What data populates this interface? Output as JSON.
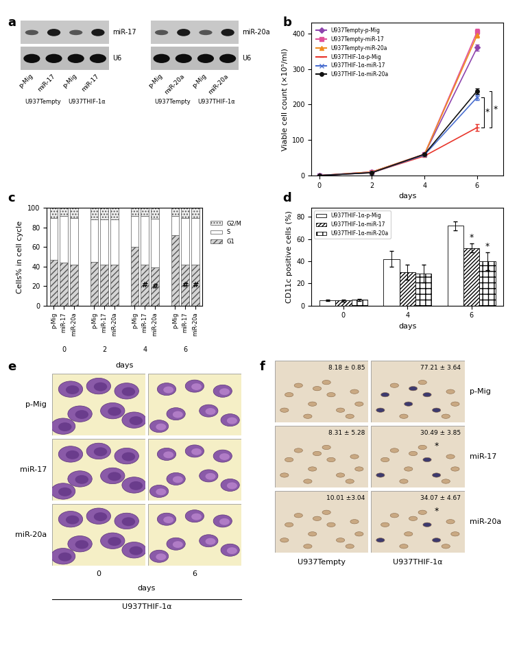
{
  "panel_a": {
    "label": "a",
    "blots": [
      {
        "probe": "miR-17",
        "control": "U6",
        "lanes": [
          "p-Mig",
          "miR-17",
          "p-Mig",
          "miR-17"
        ],
        "groups": [
          "U937Tempty",
          "U937THIF-1α"
        ]
      },
      {
        "probe": "miR-20a",
        "control": "U6",
        "lanes": [
          "p-Mig",
          "miR-20a",
          "p-Mig",
          "miR-20a"
        ],
        "groups": [
          "U937Tempty",
          "U937THIF-1α"
        ]
      }
    ]
  },
  "chart_data": [
    {
      "panel": "b",
      "type": "line",
      "x": [
        0,
        2,
        4,
        6
      ],
      "xlim": [
        -0.3,
        7
      ],
      "xticks": [
        0,
        2,
        4,
        6
      ],
      "ylim": [
        0,
        430
      ],
      "yticks": [
        0,
        100,
        200,
        300,
        400
      ],
      "x_label": "days",
      "y_label": "Viable cell count (×10⁵/ml)",
      "legend": "upper left",
      "series": [
        {
          "name": "U937Tempty-p-Mig",
          "color": "#8e44ad",
          "marker": "diamond",
          "line_style": "solid",
          "values": [
            0,
            10,
            60,
            360
          ],
          "errors": [
            0.5,
            1,
            3,
            8
          ]
        },
        {
          "name": "U937Tempty-miR-17",
          "color": "#e0509a",
          "marker": "square",
          "line_style": "solid",
          "values": [
            0,
            10,
            60,
            405
          ],
          "errors": [
            0.5,
            1,
            3,
            8
          ]
        },
        {
          "name": "U937Tempty-miR-20a",
          "color": "#f08c1e",
          "marker": "triangle",
          "line_style": "solid",
          "values": [
            0,
            10,
            60,
            395
          ],
          "errors": [
            0.5,
            1,
            3,
            8
          ]
        },
        {
          "name": "U937THIF-1α-p-Mig",
          "color": "#e8352b",
          "marker": "hline",
          "line_style": "solid",
          "values": [
            0,
            8,
            55,
            135
          ],
          "errors": [
            0.5,
            1,
            3,
            10
          ]
        },
        {
          "name": "U937THIF-1α-miR-17",
          "color": "#4a6fd0",
          "marker": "x",
          "line_style": "solid",
          "values": [
            0,
            8,
            58,
            220
          ],
          "errors": [
            0.5,
            1,
            3,
            8
          ]
        },
        {
          "name": "U937THIF-1α-miR-20a",
          "color": "#111111",
          "marker": "circle",
          "line_style": "solid",
          "values": [
            0,
            8,
            60,
            238
          ],
          "errors": [
            0.5,
            1,
            3,
            8
          ]
        }
      ],
      "significance": [
        {
          "between": [
            "U937THIF-1α-p-Mig",
            "U937THIF-1α-miR-17"
          ],
          "text": "*"
        },
        {
          "between": [
            "U937THIF-1α-p-Mig",
            "U937THIF-1α-miR-20a"
          ],
          "text": "*"
        }
      ]
    },
    {
      "panel": "c",
      "type": "bar",
      "stacked": true,
      "legend": "right",
      "categories": [
        "p-Mig",
        "miR-17",
        "miR-20a",
        "p-Mig",
        "miR-17",
        "miR-20a",
        "p-Mig",
        "miR-17",
        "miR-20a",
        "p-Mig",
        "miR-17",
        "miR-20a"
      ],
      "groups": [
        "0",
        "2",
        "4",
        "6"
      ],
      "x_label": "days",
      "y_label": "Cells% in cell cycle",
      "ylim": [
        0,
        100
      ],
      "yticks": [
        0,
        20,
        40,
        60,
        80,
        100
      ],
      "series": [
        {
          "name": "G1",
          "color": "#d4d4d4",
          "values": [
            47,
            44,
            42,
            45,
            42,
            42,
            60,
            42,
            39,
            72,
            42,
            42
          ]
        },
        {
          "name": "S",
          "color": "#ffffff",
          "values": [
            43,
            48,
            48,
            43,
            46,
            46,
            32,
            50,
            50,
            20,
            48,
            48
          ]
        },
        {
          "name": "G2/M",
          "color": "#ededed",
          "values": [
            10,
            8,
            10,
            12,
            12,
            12,
            8,
            8,
            11,
            8,
            10,
            10
          ]
        }
      ],
      "markers": [
        {
          "index": 7,
          "series": "G1",
          "text": "#"
        },
        {
          "index": 8,
          "series": "G1",
          "text": "#"
        },
        {
          "index": 10,
          "series": "G1",
          "text": "#"
        },
        {
          "index": 11,
          "series": "G1",
          "text": "#"
        }
      ]
    },
    {
      "panel": "d",
      "type": "bar",
      "legend": "upper left",
      "categories": [
        "0",
        "4",
        "6"
      ],
      "x_label": "days",
      "y_label": "CD11c positive cells (%)",
      "ylim": [
        0,
        88
      ],
      "yticks": [
        0,
        20,
        40,
        60,
        80
      ],
      "series": [
        {
          "name": "U937THIF-1α-p-Mig",
          "color": "#ffffff",
          "values": [
            4.5,
            42,
            72
          ],
          "errors": [
            0.5,
            7,
            4
          ]
        },
        {
          "name": "U937THIF-1α-miR-17",
          "color": "#ffffff",
          "values": [
            4.5,
            30,
            52
          ],
          "errors": [
            1,
            7,
            4
          ]
        },
        {
          "name": "U937THIF-1α-miR-20a",
          "color": "#ffffff",
          "values": [
            5,
            29,
            40
          ],
          "errors": [
            1,
            8,
            8
          ]
        }
      ],
      "markers": [
        {
          "index": 2,
          "series": "U937THIF-1α-miR-17",
          "text": "*"
        },
        {
          "index": 2,
          "series": "U937THIF-1α-miR-20a",
          "text": "*"
        }
      ]
    }
  ],
  "panel_e": {
    "label": "e",
    "rows": [
      "p-Mig",
      "miR-17",
      "miR-20a"
    ],
    "columns": [
      "0",
      "6"
    ],
    "column_axis_label": "days",
    "group_label": "U937THIF-1α"
  },
  "panel_f": {
    "label": "f",
    "rows": [
      "p-Mig",
      "miR-17",
      "miR-20a"
    ],
    "columns": [
      "U937Tempty",
      "U937THIF-1α"
    ],
    "cells": [
      [
        "8.18 ± 0.85",
        "77.21 ± 3.64"
      ],
      [
        "8.31 ± 5.28",
        "30.49 ± 3.85"
      ],
      [
        "10.01 ±3.04",
        "34.07 ± 4.67"
      ]
    ],
    "significant": [
      [
        false,
        false
      ],
      [
        false,
        true
      ],
      [
        false,
        true
      ]
    ],
    "significance_text": "*"
  }
}
